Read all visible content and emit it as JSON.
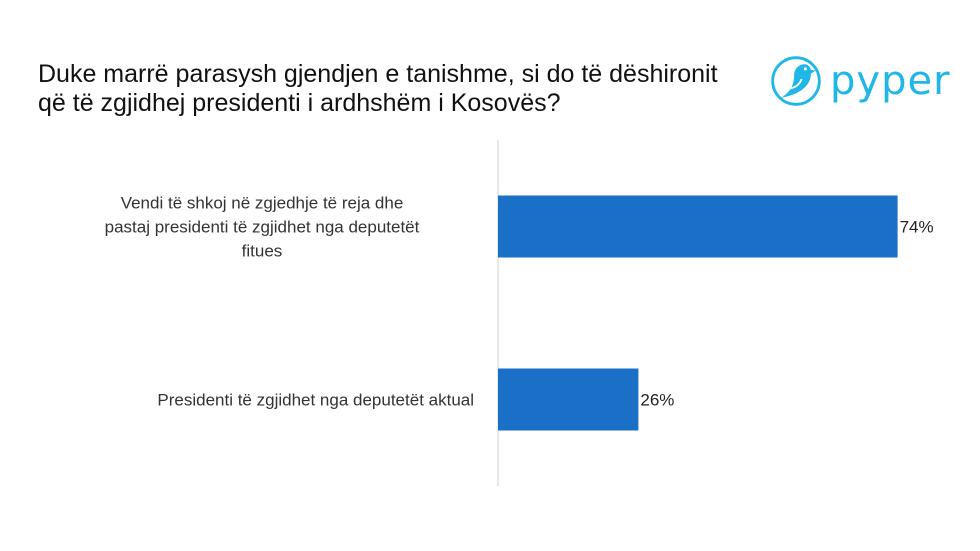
{
  "chart_data": {
    "type": "bar",
    "orientation": "horizontal",
    "title": "Duke marrë parasysh gjendjen e tanishme, si do të dëshironit që të zgjidhej presidenti i ardhshëm i Kosovës?",
    "categories": [
      [
        "Vendi të shkoj në zgjedhje të reja dhe",
        "pastaj presidenti të zgjidhet nga deputetët",
        "fitues"
      ],
      [
        "Presidenti të zgjidhet nga deputetët aktual"
      ]
    ],
    "values": [
      74,
      26
    ],
    "value_labels": [
      "74%",
      "26%"
    ],
    "xlim": [
      0,
      100
    ],
    "bar_color": "#1a6fc7",
    "axis_color": "#d0d0d0",
    "grid": false,
    "legend": "none"
  },
  "branding": {
    "logo_text": "pyper",
    "logo_icon": "bird-icon",
    "logo_color": "#1fb6e8"
  }
}
